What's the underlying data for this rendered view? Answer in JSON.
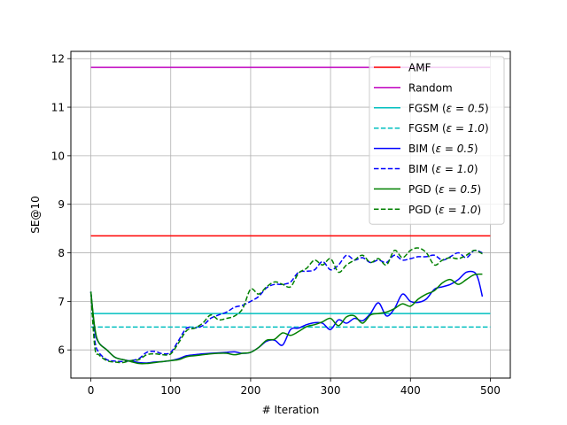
{
  "chart_data": {
    "type": "line",
    "title": "",
    "xlabel": "# Iteration",
    "ylabel": "SE@10",
    "xlim": [
      -25,
      525
    ],
    "ylim": [
      5.42,
      12.15
    ],
    "xticks": [
      0,
      100,
      200,
      300,
      400,
      500
    ],
    "yticks": [
      6,
      7,
      8,
      9,
      10,
      11,
      12
    ],
    "grid": true,
    "legend_position": "top-right",
    "series": [
      {
        "name": "AMF",
        "color": "#ff0000",
        "dash": "solid",
        "x": [
          0,
          500
        ],
        "y": [
          8.35,
          8.35
        ]
      },
      {
        "name": "Random",
        "color": "#bf00bf",
        "dash": "solid",
        "x": [
          0,
          500
        ],
        "y": [
          11.82,
          11.82
        ]
      },
      {
        "name": "FGSM ($\\epsilon = 0.5$)",
        "color": "#00bfbf",
        "dash": "solid",
        "x": [
          0,
          500
        ],
        "y": [
          6.75,
          6.75
        ]
      },
      {
        "name": "FGSM ($\\epsilon = 1.0$)",
        "color": "#00bfbf",
        "dash": "dashed",
        "x": [
          0,
          500
        ],
        "y": [
          6.47,
          6.47
        ]
      },
      {
        "name": "BIM ($\\epsilon = 0.5$)",
        "color": "#0000ff",
        "dash": "solid",
        "x": [
          0,
          5,
          10,
          20,
          30,
          40,
          50,
          60,
          70,
          80,
          90,
          100,
          110,
          120,
          130,
          140,
          150,
          160,
          170,
          180,
          190,
          200,
          210,
          220,
          230,
          240,
          250,
          260,
          270,
          280,
          290,
          300,
          310,
          320,
          330,
          340,
          350,
          360,
          370,
          380,
          390,
          400,
          410,
          420,
          430,
          440,
          450,
          460,
          470,
          480,
          485,
          490
        ],
        "y": [
          7.2,
          6.4,
          6.15,
          6.0,
          5.85,
          5.8,
          5.77,
          5.74,
          5.73,
          5.75,
          5.76,
          5.78,
          5.82,
          5.88,
          5.9,
          5.92,
          5.93,
          5.94,
          5.95,
          5.96,
          5.93,
          5.95,
          6.05,
          6.18,
          6.2,
          6.1,
          6.42,
          6.45,
          6.52,
          6.56,
          6.55,
          6.42,
          6.62,
          6.55,
          6.65,
          6.6,
          6.75,
          6.97,
          6.7,
          6.85,
          7.15,
          7.0,
          6.98,
          7.05,
          7.25,
          7.3,
          7.35,
          7.45,
          7.6,
          7.6,
          7.45,
          7.1
        ]
      },
      {
        "name": "BIM ($\\epsilon = 1.0$)",
        "color": "#0000ff",
        "dash": "dashed",
        "x": [
          0,
          5,
          10,
          20,
          30,
          40,
          50,
          60,
          70,
          80,
          90,
          100,
          110,
          120,
          130,
          140,
          150,
          160,
          170,
          180,
          190,
          200,
          210,
          220,
          230,
          240,
          250,
          260,
          270,
          280,
          290,
          300,
          310,
          320,
          330,
          340,
          350,
          360,
          370,
          380,
          390,
          400,
          410,
          420,
          430,
          440,
          450,
          460,
          470,
          480,
          490
        ],
        "y": [
          7.2,
          6.2,
          5.95,
          5.8,
          5.77,
          5.76,
          5.78,
          5.82,
          5.95,
          5.97,
          5.92,
          5.95,
          6.2,
          6.45,
          6.45,
          6.5,
          6.65,
          6.72,
          6.78,
          6.88,
          6.92,
          7.0,
          7.1,
          7.28,
          7.35,
          7.35,
          7.4,
          7.6,
          7.62,
          7.65,
          7.82,
          7.65,
          7.75,
          7.95,
          7.85,
          7.9,
          7.8,
          7.85,
          7.8,
          7.95,
          7.85,
          7.88,
          7.92,
          7.92,
          7.95,
          7.85,
          7.92,
          8.0,
          7.9,
          8.05,
          8.0
        ]
      },
      {
        "name": "PGD ($\\epsilon = 0.5$)",
        "color": "#008000",
        "dash": "solid",
        "x": [
          0,
          5,
          10,
          20,
          30,
          40,
          50,
          60,
          70,
          80,
          90,
          100,
          110,
          120,
          130,
          140,
          150,
          160,
          170,
          180,
          190,
          200,
          210,
          220,
          230,
          240,
          250,
          260,
          270,
          280,
          290,
          300,
          310,
          320,
          330,
          340,
          350,
          360,
          370,
          380,
          390,
          400,
          410,
          420,
          430,
          440,
          450,
          460,
          470,
          480,
          490
        ],
        "y": [
          7.2,
          6.45,
          6.15,
          6.0,
          5.85,
          5.8,
          5.76,
          5.72,
          5.72,
          5.74,
          5.76,
          5.78,
          5.8,
          5.86,
          5.88,
          5.9,
          5.92,
          5.93,
          5.93,
          5.9,
          5.93,
          5.95,
          6.05,
          6.2,
          6.22,
          6.35,
          6.3,
          6.38,
          6.48,
          6.52,
          6.58,
          6.65,
          6.5,
          6.68,
          6.7,
          6.55,
          6.72,
          6.75,
          6.78,
          6.85,
          6.95,
          6.9,
          7.05,
          7.15,
          7.22,
          7.38,
          7.45,
          7.35,
          7.45,
          7.55,
          7.56
        ]
      },
      {
        "name": "PGD ($\\epsilon = 1.0$)",
        "color": "#008000",
        "dash": "dashed",
        "x": [
          0,
          5,
          10,
          20,
          30,
          40,
          50,
          60,
          70,
          80,
          90,
          100,
          110,
          120,
          130,
          140,
          150,
          160,
          170,
          180,
          190,
          200,
          210,
          220,
          230,
          240,
          250,
          260,
          270,
          280,
          290,
          300,
          310,
          320,
          330,
          340,
          350,
          360,
          370,
          380,
          390,
          400,
          410,
          420,
          430,
          440,
          450,
          460,
          470,
          480,
          490
        ],
        "y": [
          7.2,
          6.05,
          5.9,
          5.78,
          5.75,
          5.74,
          5.78,
          5.8,
          5.9,
          5.92,
          5.9,
          5.92,
          6.15,
          6.4,
          6.45,
          6.55,
          6.72,
          6.62,
          6.65,
          6.7,
          6.85,
          7.25,
          7.15,
          7.3,
          7.4,
          7.35,
          7.3,
          7.58,
          7.68,
          7.85,
          7.75,
          7.88,
          7.6,
          7.75,
          7.85,
          7.95,
          7.8,
          7.88,
          7.75,
          8.05,
          7.9,
          8.05,
          8.1,
          8.0,
          7.75,
          7.85,
          7.9,
          7.88,
          7.95,
          8.05,
          7.98
        ]
      }
    ]
  }
}
